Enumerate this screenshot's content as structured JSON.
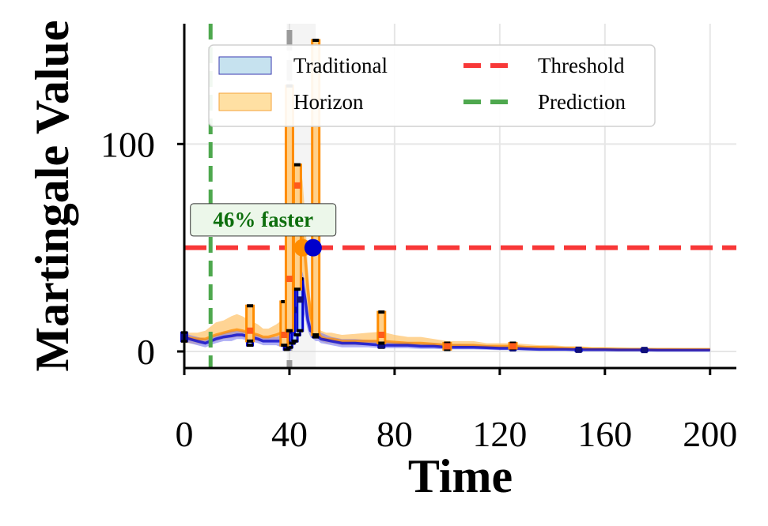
{
  "chart_data": {
    "type": "line",
    "xlabel": "Time",
    "ylabel": "Martingale Value",
    "xlim": [
      0,
      210
    ],
    "ylim": [
      -8,
      158
    ],
    "xticks": [
      0,
      40,
      80,
      120,
      160,
      200
    ],
    "yticks": [
      0,
      100
    ],
    "grid": true,
    "legend_position": "top",
    "legend": [
      {
        "label": "Traditional",
        "kind": "band",
        "color": "#c6e2ef",
        "edge": "#3a3ab0"
      },
      {
        "label": "Horizon",
        "kind": "band",
        "color": "#ffe0a3",
        "edge": "#f5a33a"
      },
      {
        "label": "Threshold",
        "kind": "dashed",
        "color": "#f83838"
      },
      {
        "label": "Prediction",
        "kind": "dashed",
        "color": "#4ea84e"
      }
    ],
    "threshold": 50,
    "prediction_x": 10,
    "change_point_x": 40,
    "change_point_region": [
      39,
      50
    ],
    "annotation": {
      "text": "46% faster",
      "x": 30,
      "y": 64,
      "color": "#0d6e0d"
    },
    "detections": [
      {
        "series": "Horizon",
        "x": 45,
        "y": 50,
        "color": "#ff8c00"
      },
      {
        "series": "Traditional",
        "x": 49,
        "y": 50,
        "color": "#0000cc"
      }
    ],
    "colors": {
      "traditional": "#0000cc",
      "horizon": "#ff8c00",
      "threshold": "#f83838",
      "prediction": "#4ea84e",
      "change_point": "#9a9a9a",
      "annotation_bg": "#ecf7ea"
    },
    "series": [
      {
        "name": "Traditional",
        "x": [
          0,
          2,
          5,
          8,
          10,
          12,
          15,
          18,
          20,
          22,
          25,
          28,
          30,
          32,
          35,
          37,
          38,
          39,
          40,
          41,
          42,
          43,
          44,
          45,
          46,
          47,
          48,
          49,
          50,
          51,
          52,
          54,
          56,
          58,
          60,
          65,
          70,
          75,
          80,
          85,
          90,
          95,
          100,
          105,
          110,
          115,
          120,
          125,
          130,
          135,
          140,
          145,
          150,
          155,
          160,
          165,
          170,
          175,
          180,
          185,
          190,
          195,
          200
        ],
        "y": [
          7,
          6,
          5,
          4,
          5,
          6,
          7,
          7.5,
          8,
          8,
          7,
          6,
          5,
          5,
          5,
          5,
          7,
          10,
          15,
          20,
          25,
          30,
          33,
          32,
          25,
          15,
          10,
          9,
          8,
          7,
          6,
          5.5,
          5,
          4.5,
          4,
          4,
          3.5,
          3,
          3,
          3,
          2.5,
          2.5,
          2,
          2,
          2,
          1.8,
          1.5,
          1.5,
          1.2,
          1,
          1,
          1,
          0.8,
          0.8,
          0.8,
          0.7,
          0.7,
          0.7,
          0.6,
          0.6,
          0.6,
          0.6,
          0.6
        ],
        "band_lower": [
          5,
          4,
          3,
          2,
          3,
          4,
          5,
          5,
          6,
          6,
          5,
          4,
          3,
          3,
          3,
          2,
          3,
          5,
          8,
          12,
          15,
          18,
          20,
          20,
          16,
          10,
          7,
          6,
          5,
          5,
          4,
          3.5,
          3,
          2.5,
          2,
          2,
          2,
          1.5,
          1.5,
          1.5,
          1.2,
          1.2,
          1,
          1,
          1,
          0.8,
          0.6,
          0.6,
          0.5,
          0.4,
          0.4,
          0.4,
          0.3,
          0.3,
          0.3,
          0.3,
          0.3,
          0.3,
          0.2,
          0.2,
          0.2,
          0.2,
          0.2
        ],
        "band_upper": [
          9,
          8,
          7,
          6,
          7,
          8,
          9,
          10,
          10,
          10,
          9,
          8,
          7,
          7,
          7,
          8,
          11,
          15,
          22,
          28,
          34,
          38,
          40,
          38,
          32,
          20,
          14,
          12,
          11,
          10,
          9,
          8,
          7,
          6.5,
          6,
          6,
          5.5,
          5,
          4.5,
          4.5,
          4,
          4,
          3.5,
          3.5,
          3.2,
          3,
          2.6,
          2.6,
          2.2,
          1.8,
          1.8,
          1.6,
          1.4,
          1.4,
          1.4,
          1.2,
          1.2,
          1.2,
          1.1,
          1.1,
          1,
          1,
          1
        ]
      },
      {
        "name": "Horizon",
        "x": [
          0,
          2,
          5,
          8,
          10,
          12,
          15,
          18,
          20,
          22,
          25,
          28,
          30,
          32,
          35,
          37,
          38,
          39,
          40,
          41,
          42,
          43,
          44,
          45,
          46,
          47,
          48,
          49,
          50,
          51,
          52,
          54,
          56,
          58,
          60,
          65,
          70,
          75,
          80,
          85,
          90,
          95,
          100,
          105,
          110,
          115,
          120,
          125,
          130,
          135,
          140,
          145,
          150,
          155,
          160,
          165,
          170,
          175,
          180,
          185,
          190,
          195,
          200
        ],
        "y": [
          7,
          6.5,
          6,
          6,
          7,
          8,
          9,
          10,
          10.5,
          10,
          9,
          8,
          7,
          7,
          8,
          9,
          12,
          18,
          25,
          35,
          45,
          55,
          60,
          55,
          45,
          30,
          18,
          12,
          10,
          9,
          7,
          6,
          6,
          5.5,
          5,
          5,
          5,
          5,
          4.5,
          4,
          4,
          3.5,
          3,
          3,
          3,
          2.5,
          2.5,
          2.5,
          2,
          2,
          1.8,
          1.5,
          1.5,
          1.2,
          1.2,
          1,
          1,
          1,
          1,
          1,
          1,
          1,
          1
        ],
        "band_lower": [
          4,
          4,
          3.5,
          3.5,
          4,
          5,
          6,
          6.5,
          7,
          7,
          6,
          5,
          4.5,
          4.5,
          5,
          5,
          6,
          9,
          12,
          18,
          25,
          30,
          34,
          32,
          26,
          18,
          11,
          8,
          7,
          6,
          5,
          4,
          4,
          3.5,
          3,
          3,
          3,
          3,
          2.5,
          2.5,
          2.5,
          2,
          2,
          2,
          2,
          1.5,
          1.5,
          1.5,
          1.2,
          1.2,
          1,
          1,
          1,
          0.8,
          0.8,
          0.6,
          0.6,
          0.6,
          0.6,
          0.6,
          0.6,
          0.6,
          0.6
        ],
        "band_upper": [
          9,
          9,
          9,
          10,
          12,
          14,
          15,
          17,
          18,
          17,
          15,
          13,
          11,
          11,
          13,
          15,
          20,
          30,
          45,
          60,
          75,
          85,
          90,
          82,
          65,
          40,
          25,
          17,
          14,
          12,
          10,
          9,
          9,
          8.5,
          8,
          8.5,
          9,
          9.5,
          8,
          7,
          7,
          6,
          5,
          5,
          5,
          4,
          4,
          4,
          3.5,
          3,
          3,
          2.5,
          2.5,
          2,
          2,
          2,
          1.8,
          1.8,
          1.6,
          1.6,
          1.5,
          1.5,
          1.5
        ]
      }
    ],
    "markers": [
      {
        "series": "Traditional",
        "x": 0,
        "y": 7,
        "ylow": 5,
        "yhigh": 9
      },
      {
        "series": "Traditional",
        "x": 25,
        "y": 7,
        "ylow": 3,
        "yhigh": 18
      },
      {
        "series": "Traditional",
        "x": 39,
        "y": 3,
        "ylow": 1,
        "yhigh": 15
      },
      {
        "series": "Traditional",
        "x": 40,
        "y": 6,
        "ylow": 2,
        "yhigh": 20
      },
      {
        "series": "Traditional",
        "x": 41,
        "y": 10,
        "ylow": 4,
        "yhigh": 30
      },
      {
        "series": "Traditional",
        "x": 42,
        "y": 15,
        "ylow": 5,
        "yhigh": 36
      },
      {
        "series": "Traditional",
        "x": 43,
        "y": 20,
        "ylow": 8,
        "yhigh": 38
      },
      {
        "series": "Traditional",
        "x": 44,
        "y": 25,
        "ylow": 10,
        "yhigh": 35
      },
      {
        "series": "Traditional",
        "x": 50,
        "y": 10,
        "ylow": 7,
        "yhigh": 30
      },
      {
        "series": "Traditional",
        "x": 75,
        "y": 3,
        "ylow": 2,
        "yhigh": 5
      },
      {
        "series": "Traditional",
        "x": 100,
        "y": 2,
        "ylow": 1,
        "yhigh": 3
      },
      {
        "series": "Traditional",
        "x": 125,
        "y": 1.5,
        "ylow": 1,
        "yhigh": 2
      },
      {
        "series": "Traditional",
        "x": 150,
        "y": 0.8,
        "ylow": 0.5,
        "yhigh": 1
      },
      {
        "series": "Traditional",
        "x": 175,
        "y": 0.7,
        "ylow": 0.5,
        "yhigh": 1
      },
      {
        "series": "Horizon",
        "x": 25,
        "y": 10,
        "ylow": 5,
        "yhigh": 22
      },
      {
        "series": "Horizon",
        "x": 38,
        "y": 8,
        "ylow": 3,
        "yhigh": 24
      },
      {
        "series": "Horizon",
        "x": 40,
        "y": 35,
        "ylow": 10,
        "yhigh": 128
      },
      {
        "series": "Horizon",
        "x": 43,
        "y": 80,
        "ylow": 30,
        "yhigh": 90
      },
      {
        "series": "Horizon",
        "x": 50,
        "y": 70,
        "ylow": 8,
        "yhigh": 150
      },
      {
        "series": "Horizon",
        "x": 75,
        "y": 8,
        "ylow": 4,
        "yhigh": 19
      },
      {
        "series": "Horizon",
        "x": 100,
        "y": 2.5,
        "ylow": 1,
        "yhigh": 4
      },
      {
        "series": "Horizon",
        "x": 125,
        "y": 2.5,
        "ylow": 1.5,
        "yhigh": 4
      }
    ]
  }
}
